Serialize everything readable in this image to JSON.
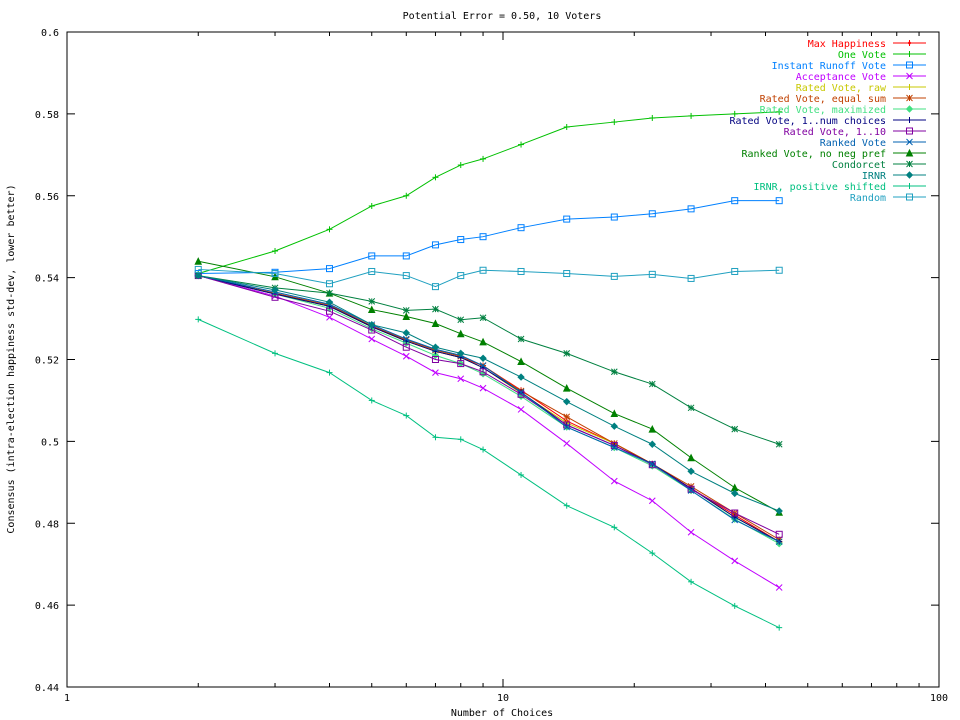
{
  "chart_data": {
    "type": "line",
    "title": "Potential Error = 0.50, 10 Voters",
    "xlabel": "Number of Choices",
    "ylabel": "Consensus (intra-election happiness std-dev, lower better)",
    "xscale": "log",
    "xlim": [
      1,
      100
    ],
    "ylim": [
      0.44,
      0.6
    ],
    "x_ticks": [
      1,
      10,
      100
    ],
    "x_tick_labels": [
      "1",
      "10",
      "100"
    ],
    "y_ticks": [
      0.44,
      0.46,
      0.48,
      0.5,
      0.52,
      0.54,
      0.56,
      0.58,
      0.6
    ],
    "y_tick_labels": [
      "0.44",
      "0.46",
      "0.48",
      "0.5",
      "0.52",
      "0.54",
      "0.56",
      "0.58",
      "0.6"
    ],
    "grid": false,
    "legend_position": "top-right",
    "x": [
      2,
      3,
      4,
      5,
      6,
      7,
      8,
      9,
      11,
      14,
      18,
      22,
      27,
      34,
      43
    ],
    "series": [
      {
        "name": "Max Happiness",
        "color": "#ff0000",
        "marker": "plus-dot",
        "values": [
          0.5405,
          0.536,
          0.533,
          0.528,
          0.5245,
          0.522,
          0.5205,
          0.5185,
          0.5125,
          0.505,
          0.4995,
          0.4945,
          0.4885,
          0.482,
          0.4755
        ]
      },
      {
        "name": "One Vote",
        "color": "#00c000",
        "marker": "plus",
        "values": [
          0.541,
          0.5465,
          0.5518,
          0.5575,
          0.56,
          0.5645,
          0.5675,
          0.569,
          0.5725,
          0.5768,
          0.578,
          0.579,
          0.5795,
          0.58,
          0.5805
        ]
      },
      {
        "name": "Instant Runoff Vote",
        "color": "#0080ff",
        "marker": "square",
        "values": [
          0.541,
          0.5413,
          0.5422,
          0.5453,
          0.5453,
          0.548,
          0.5493,
          0.55,
          0.5522,
          0.5543,
          0.5548,
          0.5556,
          0.5568,
          0.5588,
          0.5588
        ]
      },
      {
        "name": "Acceptance Vote",
        "color": "#c000ff",
        "marker": "cross",
        "values": [
          0.5405,
          0.5355,
          0.5303,
          0.525,
          0.5208,
          0.5168,
          0.5153,
          0.513,
          0.5078,
          0.4995,
          0.4903,
          0.4855,
          0.4778,
          0.4708,
          0.4643
        ]
      },
      {
        "name": "Rated Vote, raw",
        "color": "#c8c800",
        "marker": "plus",
        "values": [
          0.5405,
          0.536,
          0.533,
          0.528,
          0.5245,
          0.522,
          0.5205,
          0.518,
          0.5118,
          0.5045,
          0.4995,
          0.4945,
          0.4885,
          0.4815,
          0.4755
        ]
      },
      {
        "name": "Rated Vote, equal sum",
        "color": "#c04000",
        "marker": "star",
        "values": [
          0.5405,
          0.5362,
          0.5333,
          0.5282,
          0.5248,
          0.5223,
          0.5208,
          0.5185,
          0.5123,
          0.506,
          0.4995,
          0.4945,
          0.489,
          0.4825,
          0.476
        ]
      },
      {
        "name": "Rated Vote, maximized",
        "color": "#40e080",
        "marker": "diamond",
        "values": [
          0.5405,
          0.536,
          0.5325,
          0.5275,
          0.524,
          0.521,
          0.519,
          0.5165,
          0.511,
          0.5035,
          0.4985,
          0.494,
          0.488,
          0.481,
          0.475
        ]
      },
      {
        "name": "Rated Vote, 1..num choices",
        "color": "#000080",
        "marker": "plus",
        "values": [
          0.5405,
          0.536,
          0.533,
          0.528,
          0.5245,
          0.522,
          0.5205,
          0.518,
          0.512,
          0.504,
          0.499,
          0.4945,
          0.4885,
          0.4815,
          0.4755
        ]
      },
      {
        "name": "Rated Vote, 1..10",
        "color": "#8000a0",
        "marker": "square",
        "values": [
          0.5405,
          0.5352,
          0.5318,
          0.5272,
          0.523,
          0.52,
          0.519,
          0.517,
          0.5115,
          0.504,
          0.499,
          0.4943,
          0.4883,
          0.4825,
          0.4773
        ]
      },
      {
        "name": "Ranked Vote",
        "color": "#0060b0",
        "marker": "cross",
        "values": [
          0.5405,
          0.5365,
          0.5335,
          0.5285,
          0.525,
          0.5225,
          0.521,
          0.5185,
          0.512,
          0.5035,
          0.4985,
          0.4945,
          0.488,
          0.4808,
          0.4755
        ]
      },
      {
        "name": "Ranked Vote, no neg pref",
        "color": "#008000",
        "marker": "triangle",
        "values": [
          0.544,
          0.5402,
          0.5362,
          0.5322,
          0.5305,
          0.5288,
          0.5263,
          0.5243,
          0.5195,
          0.513,
          0.5068,
          0.503,
          0.496,
          0.4887,
          0.4827
        ]
      },
      {
        "name": "Condorcet",
        "color": "#008040",
        "marker": "star",
        "values": [
          0.5405,
          0.5375,
          0.5362,
          0.5342,
          0.532,
          0.5323,
          0.5297,
          0.5302,
          0.525,
          0.5215,
          0.517,
          0.514,
          0.5082,
          0.503,
          0.4993
        ]
      },
      {
        "name": "IRNR",
        "color": "#008080",
        "marker": "diamond",
        "values": [
          0.5405,
          0.537,
          0.534,
          0.5285,
          0.5265,
          0.523,
          0.5215,
          0.5203,
          0.5157,
          0.5097,
          0.5037,
          0.4993,
          0.4927,
          0.4873,
          0.483
        ]
      },
      {
        "name": "IRNR, positive shifted",
        "color": "#00c080",
        "marker": "plus",
        "values": [
          0.5298,
          0.5215,
          0.5168,
          0.51,
          0.5063,
          0.501,
          0.5005,
          0.498,
          0.4918,
          0.4843,
          0.479,
          0.4727,
          0.4657,
          0.4598,
          0.4545
        ]
      },
      {
        "name": "Random",
        "color": "#20a0c0",
        "marker": "square",
        "values": [
          0.542,
          0.541,
          0.5385,
          0.5415,
          0.5405,
          0.5378,
          0.5405,
          0.5418,
          0.5415,
          0.541,
          0.5403,
          0.5408,
          0.5398,
          0.5415,
          0.5418
        ]
      }
    ]
  }
}
